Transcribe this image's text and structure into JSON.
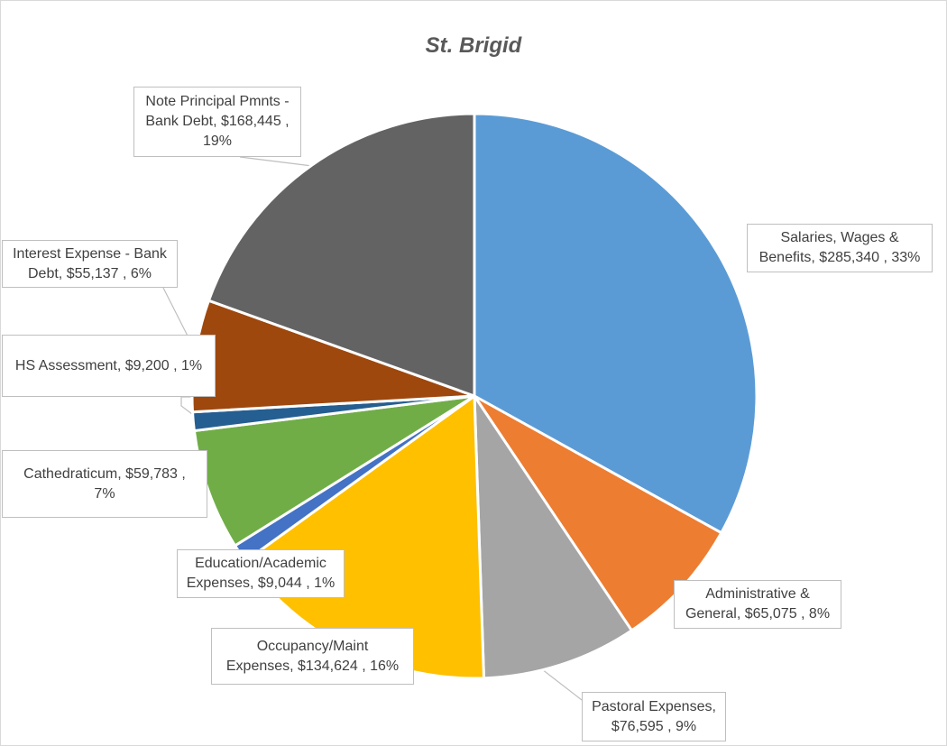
{
  "chart_data": {
    "type": "pie",
    "title": "St. Brigid",
    "start_angle_deg": 0,
    "direction": "clockwise",
    "slices": [
      {
        "category": "Salaries, Wages & Benefits",
        "value": 285340,
        "percent": "33%",
        "color": "#5b9bd5",
        "label_lines": [
          "Salaries, Wages &",
          "Benefits,  $285,340 , 33%"
        ]
      },
      {
        "category": "Administrative & General",
        "value": 65075,
        "percent": "8%",
        "color": "#ed7d31",
        "label_lines": [
          "Administrative &",
          "General,  $65,075 , 8%"
        ]
      },
      {
        "category": "Pastoral Expenses",
        "value": 76595,
        "percent": "9%",
        "color": "#a5a5a5",
        "label_lines": [
          "Pastoral Expenses,",
          "$76,595 , 9%"
        ]
      },
      {
        "category": "Occupancy/Maint Expenses",
        "value": 134624,
        "percent": "16%",
        "color": "#ffc000",
        "label_lines": [
          "Occupancy/Maint",
          "Expenses,  $134,624 , 16%"
        ]
      },
      {
        "category": "Education/Academic Expenses",
        "value": 9044,
        "percent": "1%",
        "color": "#4472c4",
        "label_lines": [
          "Education/Academic",
          "Expenses,  $9,044 , 1%"
        ]
      },
      {
        "category": "Cathedraticum",
        "value": 59783,
        "percent": "7%",
        "color": "#70ad47",
        "label_lines": [
          "Cathedraticum,  $59,783 ,",
          "7%"
        ]
      },
      {
        "category": "HS Assessment",
        "value": 9200,
        "percent": "1%",
        "color": "#255e91",
        "label_lines": [
          "HS Assessment,  $9,200 , 1%"
        ]
      },
      {
        "category": "Interest Expense - Bank Debt",
        "value": 55137,
        "percent": "6%",
        "color": "#9e480e",
        "label_lines": [
          "Interest Expense - Bank",
          "Debt,  $55,137 , 6%"
        ]
      },
      {
        "category": "Note Principal Pmnts - Bank Debt",
        "value": 168445,
        "percent": "19%",
        "color": "#636363",
        "label_lines": [
          "Note Principal Pmnts -",
          "Bank Debt,  $168,445 ,",
          "19%"
        ]
      }
    ]
  }
}
